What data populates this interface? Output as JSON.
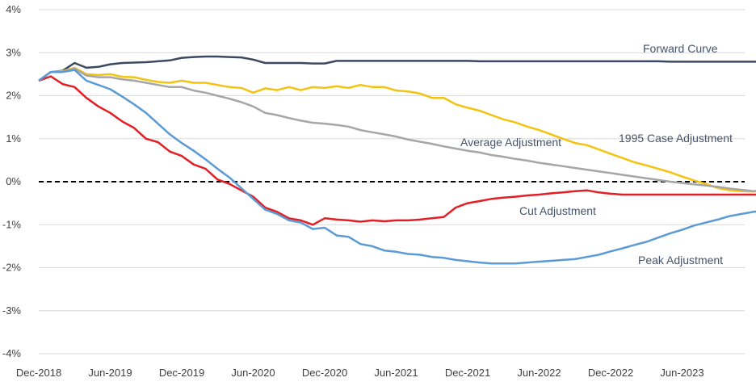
{
  "chart_data": {
    "type": "line",
    "title": "",
    "xlabel": "",
    "ylabel": "",
    "ylim": [
      -4,
      4
    ],
    "yticks": [
      -4,
      -3,
      -2,
      -1,
      0,
      1,
      2,
      3,
      4
    ],
    "ytick_labels": [
      "-4%",
      "-3%",
      "-2%",
      "-1%",
      "0%",
      "1%",
      "2%",
      "3%",
      "4%"
    ],
    "x_tick_labels": [
      "Dec-2018",
      "Jun-2019",
      "Dec-2019",
      "Jun-2020",
      "Dec-2020",
      "Jun-2021",
      "Dec-2021",
      "Jun-2022",
      "Dec-2022",
      "Jun-2023"
    ],
    "x_start": "Dec-2018",
    "x_end": "Nov-2023",
    "grid": true,
    "reference_line": {
      "y": 0,
      "style": "dashed",
      "color": "#000000"
    },
    "series": [
      {
        "name": "Forward Curve",
        "color": "#3b4a62",
        "values": [
          2.35,
          2.55,
          2.58,
          2.76,
          2.65,
          2.67,
          2.73,
          2.76,
          2.77,
          2.78,
          2.8,
          2.82,
          2.88,
          2.9,
          2.91,
          2.91,
          2.9,
          2.89,
          2.84,
          2.76,
          2.76,
          2.76,
          2.76,
          2.75,
          2.75,
          2.81,
          2.81,
          2.81,
          2.81,
          2.81,
          2.81,
          2.81,
          2.81,
          2.81,
          2.81,
          2.81,
          2.81,
          2.8,
          2.8,
          2.8,
          2.8,
          2.8,
          2.8,
          2.8,
          2.8,
          2.8,
          2.8,
          2.8,
          2.8,
          2.8,
          2.8,
          2.8,
          2.8,
          2.79,
          2.79,
          2.79,
          2.79,
          2.79,
          2.79,
          2.79,
          2.79,
          2.79
        ]
      },
      {
        "name": "1995 Case Adjustment",
        "color": "#f4c30f",
        "values": [
          2.35,
          2.55,
          2.57,
          2.65,
          2.5,
          2.48,
          2.5,
          2.44,
          2.43,
          2.37,
          2.32,
          2.3,
          2.35,
          2.3,
          2.3,
          2.25,
          2.2,
          2.18,
          2.07,
          2.17,
          2.13,
          2.2,
          2.13,
          2.2,
          2.18,
          2.22,
          2.18,
          2.25,
          2.2,
          2.2,
          2.12,
          2.1,
          2.05,
          1.95,
          1.95,
          1.8,
          1.72,
          1.65,
          1.55,
          1.45,
          1.38,
          1.28,
          1.2,
          1.1,
          1.0,
          0.9,
          0.85,
          0.75,
          0.65,
          0.55,
          0.45,
          0.38,
          0.3,
          0.22,
          0.12,
          0.03,
          -0.05,
          -0.15,
          -0.2,
          -0.22,
          -0.23,
          -0.13
        ]
      },
      {
        "name": "Average Adjustment",
        "color": "#a6a6a6",
        "values": [
          2.35,
          2.55,
          2.56,
          2.63,
          2.47,
          2.43,
          2.43,
          2.38,
          2.35,
          2.3,
          2.25,
          2.2,
          2.2,
          2.12,
          2.07,
          2.0,
          1.93,
          1.85,
          1.75,
          1.6,
          1.55,
          1.48,
          1.42,
          1.37,
          1.35,
          1.32,
          1.28,
          1.2,
          1.15,
          1.1,
          1.05,
          0.98,
          0.93,
          0.88,
          0.82,
          0.77,
          0.72,
          0.68,
          0.62,
          0.58,
          0.53,
          0.49,
          0.44,
          0.4,
          0.36,
          0.32,
          0.28,
          0.24,
          0.2,
          0.16,
          0.12,
          0.08,
          0.04,
          0.0,
          -0.03,
          -0.06,
          -0.09,
          -0.12,
          -0.16,
          -0.19,
          -0.22,
          -0.25
        ]
      },
      {
        "name": "Cut Adjustment",
        "color": "#e31e24",
        "values": [
          2.35,
          2.45,
          2.27,
          2.2,
          1.95,
          1.75,
          1.6,
          1.4,
          1.25,
          1.0,
          0.92,
          0.7,
          0.6,
          0.4,
          0.3,
          0.05,
          -0.05,
          -0.2,
          -0.35,
          -0.6,
          -0.7,
          -0.85,
          -0.9,
          -1.0,
          -0.85,
          -0.88,
          -0.9,
          -0.93,
          -0.9,
          -0.92,
          -0.9,
          -0.9,
          -0.88,
          -0.85,
          -0.82,
          -0.6,
          -0.5,
          -0.45,
          -0.4,
          -0.37,
          -0.35,
          -0.32,
          -0.3,
          -0.27,
          -0.25,
          -0.22,
          -0.2,
          -0.25,
          -0.28,
          -0.3,
          -0.3,
          -0.3,
          -0.3,
          -0.3,
          -0.3,
          -0.3,
          -0.3,
          -0.3,
          -0.3,
          -0.3,
          -0.3,
          -0.3
        ]
      },
      {
        "name": "Peak Adjustment",
        "color": "#5b9bd5",
        "values": [
          2.35,
          2.55,
          2.55,
          2.6,
          2.35,
          2.25,
          2.15,
          1.98,
          1.8,
          1.6,
          1.35,
          1.1,
          0.9,
          0.72,
          0.52,
          0.3,
          0.1,
          -0.15,
          -0.4,
          -0.65,
          -0.75,
          -0.9,
          -0.95,
          -1.1,
          -1.07,
          -1.25,
          -1.28,
          -1.45,
          -1.5,
          -1.6,
          -1.63,
          -1.68,
          -1.7,
          -1.75,
          -1.77,
          -1.82,
          -1.85,
          -1.88,
          -1.9,
          -1.9,
          -1.9,
          -1.88,
          -1.86,
          -1.84,
          -1.82,
          -1.8,
          -1.75,
          -1.7,
          -1.62,
          -1.55,
          -1.47,
          -1.4,
          -1.3,
          -1.2,
          -1.12,
          -1.02,
          -0.95,
          -0.88,
          -0.8,
          -0.75,
          -0.7,
          -0.67
        ]
      }
    ],
    "annotations": [
      {
        "series": "Forward Curve",
        "text": "Forward Curve"
      },
      {
        "series": "1995 Case Adjustment",
        "text": "1995 Case Adjustment"
      },
      {
        "series": "Average Adjustment",
        "text": "Average Adjustment"
      },
      {
        "series": "Cut Adjustment",
        "text": "Cut Adjustment"
      },
      {
        "series": "Peak Adjustment",
        "text": "Peak Adjustment"
      }
    ]
  }
}
